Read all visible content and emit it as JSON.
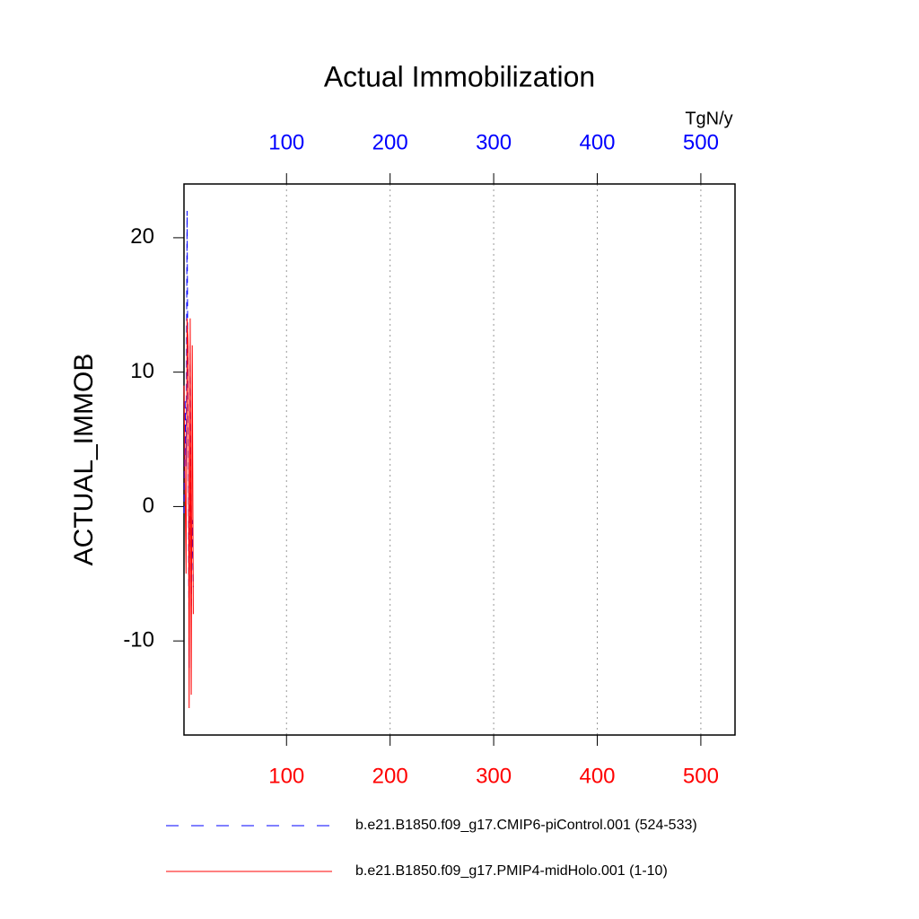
{
  "chart_data": {
    "type": "line",
    "title": "Actual Immobilization",
    "y_label": "ACTUAL_IMMOB",
    "units": "TgN/y",
    "x": [
      1,
      2,
      3,
      4,
      5,
      6,
      7,
      8,
      9,
      10
    ],
    "series": [
      {
        "name": "b.e21.B1850.f09_g17.CMIP6-piControl.001 (524-533)",
        "color": "#0000ff",
        "dash": true,
        "values": [
          -0.5,
          8,
          3,
          22,
          5,
          -12,
          12,
          -8,
          -1,
          -6
        ]
      },
      {
        "name": "b.e21.B1850.f09_g17.PMIP4-midHolo.001 (1-10)",
        "color": "#ff0000",
        "dash": false,
        "values": [
          9,
          2,
          -5,
          14,
          12,
          -15,
          14,
          -14,
          12,
          -8
        ]
      }
    ],
    "xlim": [
      1,
      533
    ],
    "xticks": [
      100,
      200,
      300,
      400,
      500
    ],
    "xtick_color": "#ff0000",
    "x2ticks": [
      100,
      200,
      300,
      400,
      500
    ],
    "x2tick_color": "#0000ff",
    "ylim": [
      -17,
      24
    ],
    "yticks": [
      -10,
      0,
      10,
      20
    ],
    "grid": true
  }
}
